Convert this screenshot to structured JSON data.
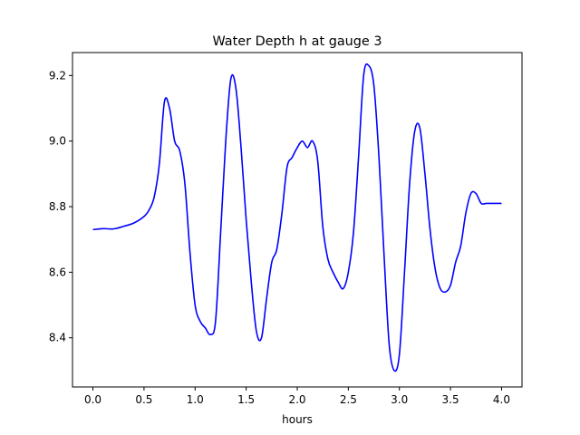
{
  "chart_data": {
    "type": "line",
    "title": "Water Depth h at gauge 3",
    "xlabel": "hours",
    "ylabel": "",
    "xlim": [
      -0.2,
      4.2
    ],
    "ylim": [
      8.25,
      9.27
    ],
    "xticks": [
      "0.0",
      "0.5",
      "1.0",
      "1.5",
      "2.0",
      "2.5",
      "3.0",
      "3.5",
      "4.0"
    ],
    "yticks": [
      "8.4",
      "8.6",
      "8.8",
      "9.0",
      "9.2"
    ],
    "grid": false,
    "series": [
      {
        "color": "#0000ff",
        "x": [
          0.0,
          0.1,
          0.2,
          0.3,
          0.4,
          0.5,
          0.55,
          0.6,
          0.65,
          0.7,
          0.75,
          0.8,
          0.85,
          0.9,
          0.95,
          1.0,
          1.05,
          1.1,
          1.15,
          1.2,
          1.25,
          1.3,
          1.35,
          1.4,
          1.45,
          1.5,
          1.55,
          1.6,
          1.65,
          1.7,
          1.75,
          1.8,
          1.85,
          1.9,
          1.95,
          2.0,
          2.05,
          2.1,
          2.15,
          2.2,
          2.25,
          2.3,
          2.35,
          2.4,
          2.45,
          2.5,
          2.55,
          2.6,
          2.65,
          2.7,
          2.75,
          2.8,
          2.85,
          2.9,
          2.95,
          3.0,
          3.05,
          3.1,
          3.15,
          3.2,
          3.25,
          3.3,
          3.35,
          3.4,
          3.45,
          3.5,
          3.55,
          3.6,
          3.65,
          3.7,
          3.75,
          3.8,
          3.85,
          3.9,
          3.95,
          4.0
        ],
        "y": [
          8.73,
          8.733,
          8.732,
          8.74,
          8.75,
          8.77,
          8.79,
          8.83,
          8.93,
          9.12,
          9.1,
          9.0,
          8.97,
          8.87,
          8.66,
          8.5,
          8.45,
          8.43,
          8.41,
          8.45,
          8.72,
          9.0,
          9.19,
          9.16,
          8.98,
          8.76,
          8.57,
          8.42,
          8.4,
          8.52,
          8.63,
          8.67,
          8.78,
          8.92,
          8.95,
          8.98,
          9.0,
          8.98,
          9.0,
          8.94,
          8.74,
          8.64,
          8.6,
          8.57,
          8.55,
          8.6,
          8.72,
          8.95,
          9.2,
          9.23,
          9.17,
          8.95,
          8.65,
          8.38,
          8.3,
          8.35,
          8.6,
          8.87,
          9.03,
          9.04,
          8.9,
          8.73,
          8.61,
          8.55,
          8.54,
          8.56,
          8.63,
          8.68,
          8.78,
          8.84,
          8.84,
          8.81,
          8.81,
          8.81,
          8.81,
          8.81
        ]
      }
    ]
  }
}
